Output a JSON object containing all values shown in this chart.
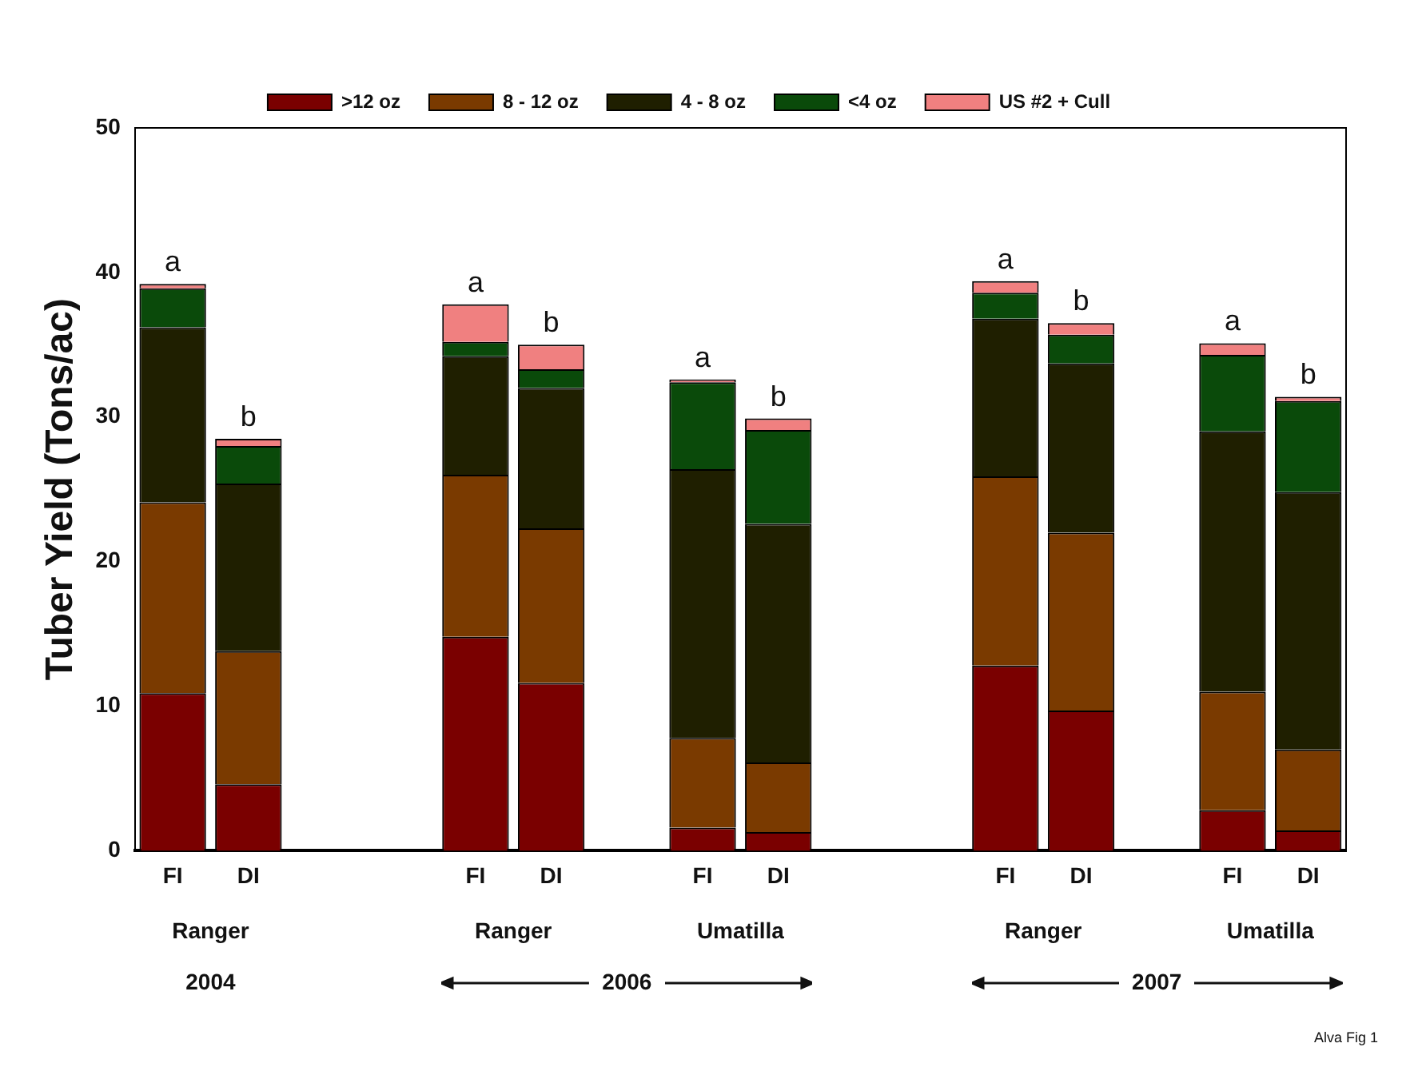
{
  "chart_data": {
    "type": "bar",
    "stacked": true,
    "ylabel": "Tuber Yield (Tons/ac)",
    "categories": [
      "FI",
      "DI",
      null,
      null,
      "FI",
      "DI",
      null,
      "FI",
      "DI",
      null,
      null,
      "FI",
      "DI",
      null,
      "FI",
      "DI"
    ],
    "series": [
      {
        "name": ">12 oz",
        "color": "#7a0000",
        "values": [
          10.9,
          4.6,
          null,
          null,
          14.8,
          11.6,
          null,
          1.6,
          1.3,
          null,
          null,
          12.8,
          9.7,
          null,
          2.8,
          1.4
        ]
      },
      {
        "name": "8 - 12 oz",
        "color": "#7a3a00",
        "values": [
          13.2,
          9.2,
          null,
          null,
          11.2,
          10.7,
          null,
          6.2,
          4.8,
          null,
          null,
          13.1,
          12.3,
          null,
          8.2,
          5.6
        ]
      },
      {
        "name": "4 - 8 oz",
        "color": "#1f1f00",
        "values": [
          12.1,
          11.6,
          null,
          null,
          8.2,
          9.7,
          null,
          18.6,
          16.5,
          null,
          null,
          10.9,
          11.7,
          null,
          18.0,
          17.8
        ]
      },
      {
        "name": "<4 oz",
        "color": "#0a4a0a",
        "values": [
          2.7,
          2.6,
          null,
          null,
          1.0,
          1.3,
          null,
          6.0,
          6.5,
          null,
          null,
          1.8,
          2.0,
          null,
          5.3,
          6.3
        ]
      },
      {
        "name": "US #2 + Cull",
        "color": "#f08080",
        "values": [
          0.3,
          0.5,
          null,
          null,
          2.6,
          1.7,
          null,
          0.2,
          0.8,
          null,
          null,
          0.8,
          0.8,
          null,
          0.8,
          0.3
        ]
      }
    ],
    "ylim": [
      0,
      50
    ],
    "yticks": [
      0,
      10,
      20,
      30,
      40,
      50
    ],
    "grid": false,
    "legend": "top",
    "annotations": [
      "a",
      "b",
      "a",
      "b",
      "a",
      "b",
      "a",
      "b",
      "a",
      "b",
      "Ranger",
      "Ranger",
      "Umatilla",
      "Ranger",
      "Umatilla",
      "2004",
      "2006",
      "2007",
      "Alva Fig 1"
    ]
  }
}
